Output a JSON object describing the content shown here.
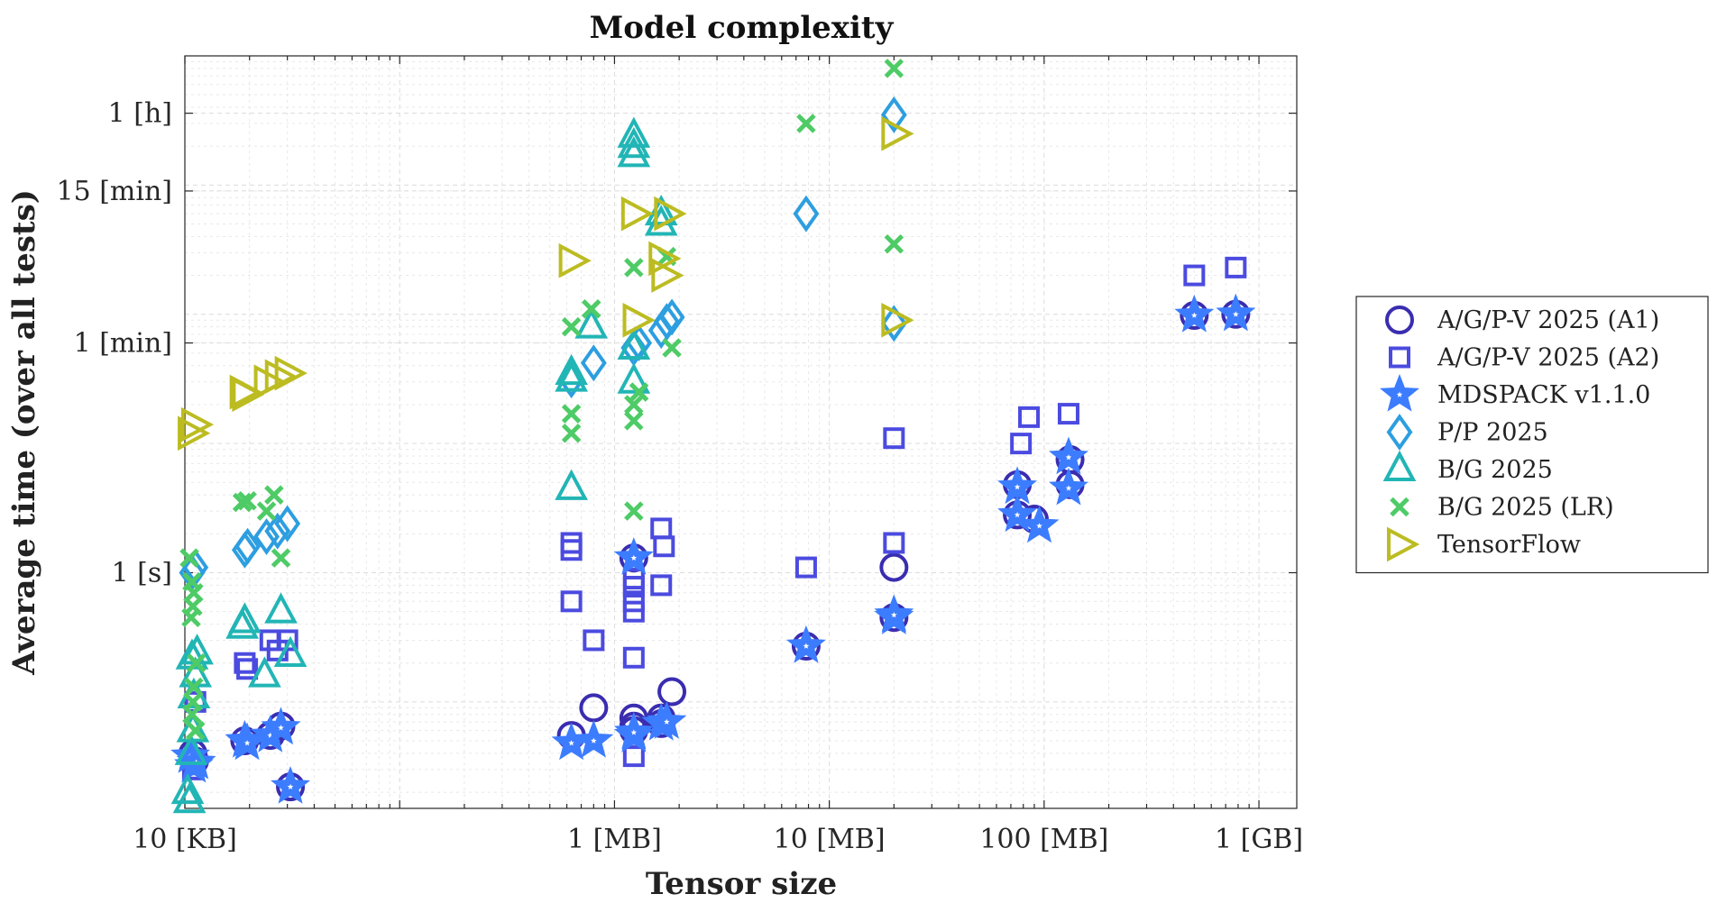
{
  "chart_data": {
    "type": "scatter",
    "title": "Model complexity",
    "xlabel": "Tensor size",
    "ylabel": "Average time (over all tests)",
    "x_scale": "log",
    "y_scale": "log",
    "x_unit": "bytes",
    "y_unit": "seconds",
    "xlim": [
      10000,
      1500000000
    ],
    "ylim": [
      0.015,
      10000
    ],
    "x_ticks": [
      {
        "value": 10000,
        "label": "10 [KB]"
      },
      {
        "value": 1000000,
        "label": "1 [MB]"
      },
      {
        "value": 10000000,
        "label": "10 [MB]"
      },
      {
        "value": 100000000,
        "label": "100 [MB]"
      },
      {
        "value": 1000000000,
        "label": "1 [GB]"
      }
    ],
    "y_ticks": [
      {
        "value": 1,
        "label": "1 [s]"
      },
      {
        "value": 60,
        "label": "1 [min]"
      },
      {
        "value": 900,
        "label": "15 [min]"
      },
      {
        "value": 3600,
        "label": "1 [h]"
      }
    ],
    "grid": true,
    "legend": "outside-right",
    "series": [
      {
        "name": "A/G/P-V 2025 (A1)",
        "marker": "circle",
        "color": "#3a2db0",
        "points": [
          [
            10900,
            0.04
          ],
          [
            11100,
            0.035
          ],
          [
            19000,
            0.05
          ],
          [
            25000,
            0.055
          ],
          [
            28000,
            0.065
          ],
          [
            31000,
            0.022
          ],
          [
            630000,
            0.055
          ],
          [
            800000,
            0.09
          ],
          [
            1230000,
            0.065
          ],
          [
            1230000,
            0.075
          ],
          [
            1230000,
            0.06
          ],
          [
            1230000,
            1.3
          ],
          [
            1650000,
            0.075
          ],
          [
            1650000,
            0.068
          ],
          [
            1850000,
            0.12
          ],
          [
            7800000,
            0.27
          ],
          [
            20000000,
            0.45
          ],
          [
            20000000,
            1.1
          ],
          [
            75000000,
            2.8
          ],
          [
            75000000,
            4.8
          ],
          [
            90000000,
            2.6
          ],
          [
            132000000,
            4.8
          ],
          [
            132000000,
            7.5
          ],
          [
            500000000,
            98
          ],
          [
            780000000,
            100
          ]
        ]
      },
      {
        "name": "A/G/P-V 2025 (A2)",
        "marker": "square",
        "color": "#4b4be0",
        "points": [
          [
            10900,
            0.03
          ],
          [
            11100,
            0.033
          ],
          [
            11200,
            0.1
          ],
          [
            19000,
            0.2
          ],
          [
            19500,
            0.18
          ],
          [
            25000,
            0.3
          ],
          [
            27000,
            0.25
          ],
          [
            30000,
            0.3
          ],
          [
            630000,
            1.7
          ],
          [
            630000,
            1.5
          ],
          [
            630000,
            0.6
          ],
          [
            800000,
            0.3
          ],
          [
            1230000,
            0.9
          ],
          [
            1230000,
            0.78
          ],
          [
            1230000,
            0.6
          ],
          [
            1230000,
            0.5
          ],
          [
            1230000,
            0.22
          ],
          [
            1230000,
            0.038
          ],
          [
            1650000,
            2.2
          ],
          [
            1650000,
            0.8
          ],
          [
            1700000,
            1.6
          ],
          [
            7800000,
            1.1
          ],
          [
            20000000,
            11
          ],
          [
            20000000,
            1.7
          ],
          [
            78000000,
            10
          ],
          [
            85000000,
            16
          ],
          [
            130000000,
            17
          ],
          [
            500000000,
            200
          ],
          [
            780000000,
            230
          ]
        ]
      },
      {
        "name": "MDSPACK v1.1.0",
        "marker": "star",
        "color": "#3c7cff",
        "points": [
          [
            10600,
            0.038
          ],
          [
            11000,
            0.032
          ],
          [
            11300,
            0.034
          ],
          [
            19000,
            0.05
          ],
          [
            19500,
            0.048
          ],
          [
            25000,
            0.055
          ],
          [
            28000,
            0.063
          ],
          [
            31000,
            0.022
          ],
          [
            630000,
            0.048
          ],
          [
            800000,
            0.05
          ],
          [
            1230000,
            0.055
          ],
          [
            1230000,
            0.058
          ],
          [
            1230000,
            1.3
          ],
          [
            1650000,
            0.068
          ],
          [
            1750000,
            0.07
          ],
          [
            7800000,
            0.27
          ],
          [
            20000000,
            0.45
          ],
          [
            20000000,
            0.47
          ],
          [
            75000000,
            2.8
          ],
          [
            75000000,
            4.6
          ],
          [
            95000000,
            2.3
          ],
          [
            130000000,
            4.5
          ],
          [
            130000000,
            7.8
          ],
          [
            500000000,
            98
          ],
          [
            780000000,
            100
          ]
        ]
      },
      {
        "name": "P/P 2025",
        "marker": "diamond",
        "color": "#2d9ee0",
        "points": [
          [
            10800,
            1
          ],
          [
            11200,
            1.1
          ],
          [
            19000,
            1.5
          ],
          [
            19600,
            1.6
          ],
          [
            24000,
            1.9
          ],
          [
            27000,
            2.1
          ],
          [
            30000,
            2.4
          ],
          [
            630000,
            31
          ],
          [
            800000,
            42
          ],
          [
            1230000,
            55
          ],
          [
            1300000,
            60
          ],
          [
            1650000,
            75
          ],
          [
            1750000,
            88
          ],
          [
            1850000,
            95
          ],
          [
            7800000,
            600
          ],
          [
            20000000,
            3500
          ],
          [
            20000000,
            85
          ]
        ]
      },
      {
        "name": "B/G 2025",
        "marker": "triangle",
        "color": "#22b5b5",
        "points": [
          [
            10300,
            0.02
          ],
          [
            10500,
            0.017
          ],
          [
            10700,
            0.04
          ],
          [
            10900,
            0.06
          ],
          [
            11000,
            0.11
          ],
          [
            11200,
            0.16
          ],
          [
            10800,
            0.22
          ],
          [
            11400,
            0.24
          ],
          [
            18500,
            0.38
          ],
          [
            19000,
            0.42
          ],
          [
            23500,
            0.16
          ],
          [
            28000,
            0.5
          ],
          [
            31000,
            0.23
          ],
          [
            630000,
            35
          ],
          [
            630000,
            31
          ],
          [
            630000,
            4.5
          ],
          [
            780000,
            80
          ],
          [
            1230000,
            1700
          ],
          [
            1230000,
            2000
          ],
          [
            1230000,
            2400
          ],
          [
            1230000,
            55
          ],
          [
            1230000,
            30
          ],
          [
            1650000,
            500
          ],
          [
            1650000,
            600
          ]
        ]
      },
      {
        "name": "B/G 2025 (LR)",
        "marker": "x",
        "color": "#4ecb66",
        "points": [
          [
            10500,
            1.3
          ],
          [
            10700,
            0.45
          ],
          [
            10900,
            0.55
          ],
          [
            11000,
            0.7
          ],
          [
            10800,
            0.85
          ],
          [
            11300,
            0.2
          ],
          [
            11000,
            0.13
          ],
          [
            10900,
            0.1
          ],
          [
            10800,
            0.08
          ],
          [
            11200,
            0.06
          ],
          [
            18500,
            3.5
          ],
          [
            19500,
            3.6
          ],
          [
            24000,
            3
          ],
          [
            26000,
            4
          ],
          [
            28000,
            1.3
          ],
          [
            630000,
            80
          ],
          [
            630000,
            17
          ],
          [
            630000,
            12
          ],
          [
            780000,
            110
          ],
          [
            1230000,
            230
          ],
          [
            1230000,
            3
          ],
          [
            1230000,
            15
          ],
          [
            1230000,
            20
          ],
          [
            1300000,
            25
          ],
          [
            1750000,
            280
          ],
          [
            1850000,
            55
          ],
          [
            7800000,
            3000
          ],
          [
            20000000,
            8000
          ],
          [
            20000000,
            350
          ]
        ]
      },
      {
        "name": "TensorFlow",
        "marker": "triangle-right",
        "color": "#bcbc22",
        "points": [
          [
            10600,
            12
          ],
          [
            11000,
            14
          ],
          [
            18500,
            25
          ],
          [
            19000,
            24
          ],
          [
            24000,
            30
          ],
          [
            27000,
            33
          ],
          [
            30000,
            35
          ],
          [
            630000,
            260
          ],
          [
            1230000,
            600
          ],
          [
            1250000,
            90
          ],
          [
            1650000,
            270
          ],
          [
            1700000,
            200
          ],
          [
            1750000,
            600
          ],
          [
            20000000,
            2500
          ],
          [
            20000000,
            90
          ]
        ]
      }
    ]
  }
}
